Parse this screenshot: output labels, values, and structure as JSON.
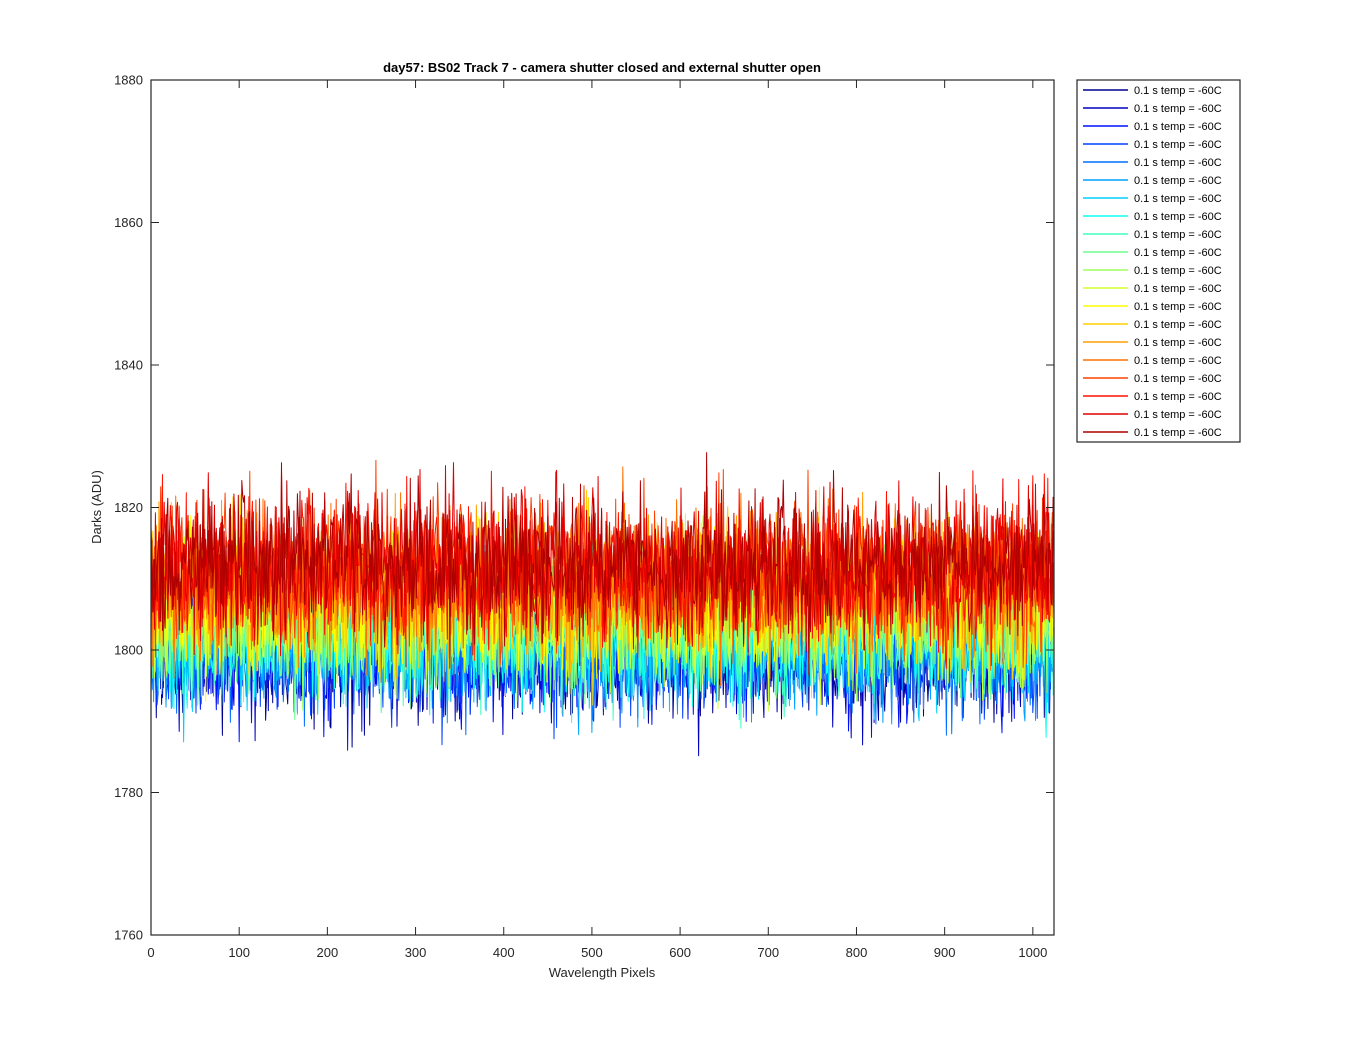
{
  "chart_data": {
    "type": "line",
    "title": "day57: BS02  Track 7 - camera shutter closed and external shutter open",
    "xlabel": "Wavelength Pixels",
    "ylabel": "Darks (ADU)",
    "xlim": [
      0,
      1024
    ],
    "ylim": [
      1760,
      1880
    ],
    "xticks": [
      0,
      100,
      200,
      300,
      400,
      500,
      600,
      700,
      800,
      900,
      1000
    ],
    "yticks": [
      1760,
      1780,
      1800,
      1820,
      1840,
      1860,
      1880
    ],
    "grid": false,
    "legend_position": "outside-top-right",
    "approximate_noise": true,
    "series": [
      {
        "name": "0.1 s temp = -60C",
        "color": "#00008f",
        "mean": 1800,
        "spread": 10
      },
      {
        "name": "0.1 s temp = -60C",
        "color": "#0000bf",
        "mean": 1800,
        "spread": 10
      },
      {
        "name": "0.1 s temp = -60C",
        "color": "#0010ff",
        "mean": 1800,
        "spread": 10
      },
      {
        "name": "0.1 s temp = -60C",
        "color": "#0040ff",
        "mean": 1801,
        "spread": 10
      },
      {
        "name": "0.1 s temp = -60C",
        "color": "#0070ff",
        "mean": 1801,
        "spread": 10
      },
      {
        "name": "0.1 s temp = -60C",
        "color": "#00a0ff",
        "mean": 1801,
        "spread": 10
      },
      {
        "name": "0.1 s temp = -60C",
        "color": "#00d0ff",
        "mean": 1802,
        "spread": 10
      },
      {
        "name": "0.1 s temp = -60C",
        "color": "#10ffef",
        "mean": 1802,
        "spread": 10
      },
      {
        "name": "0.1 s temp = -60C",
        "color": "#40ffbf",
        "mean": 1803,
        "spread": 10
      },
      {
        "name": "0.1 s temp = -60C",
        "color": "#70ff8f",
        "mean": 1804,
        "spread": 10
      },
      {
        "name": "0.1 s temp = -60C",
        "color": "#a0ff5f",
        "mean": 1805,
        "spread": 10
      },
      {
        "name": "0.1 s temp = -60C",
        "color": "#d0ff2f",
        "mean": 1806,
        "spread": 11
      },
      {
        "name": "0.1 s temp = -60C",
        "color": "#ffff00",
        "mean": 1807,
        "spread": 11
      },
      {
        "name": "0.1 s temp = -60C",
        "color": "#ffcf00",
        "mean": 1808,
        "spread": 11
      },
      {
        "name": "0.1 s temp = -60C",
        "color": "#ff9f00",
        "mean": 1809,
        "spread": 11
      },
      {
        "name": "0.1 s temp = -60C",
        "color": "#ff7000",
        "mean": 1810,
        "spread": 11
      },
      {
        "name": "0.1 s temp = -60C",
        "color": "#ff4000",
        "mean": 1811,
        "spread": 11
      },
      {
        "name": "0.1 s temp = -60C",
        "color": "#ff1000",
        "mean": 1811,
        "spread": 11
      },
      {
        "name": "0.1 s temp = -60C",
        "color": "#df0000",
        "mean": 1812,
        "spread": 11
      },
      {
        "name": "0.1 s temp = -60C",
        "color": "#af0000",
        "mean": 1812,
        "spread": 11
      }
    ]
  }
}
